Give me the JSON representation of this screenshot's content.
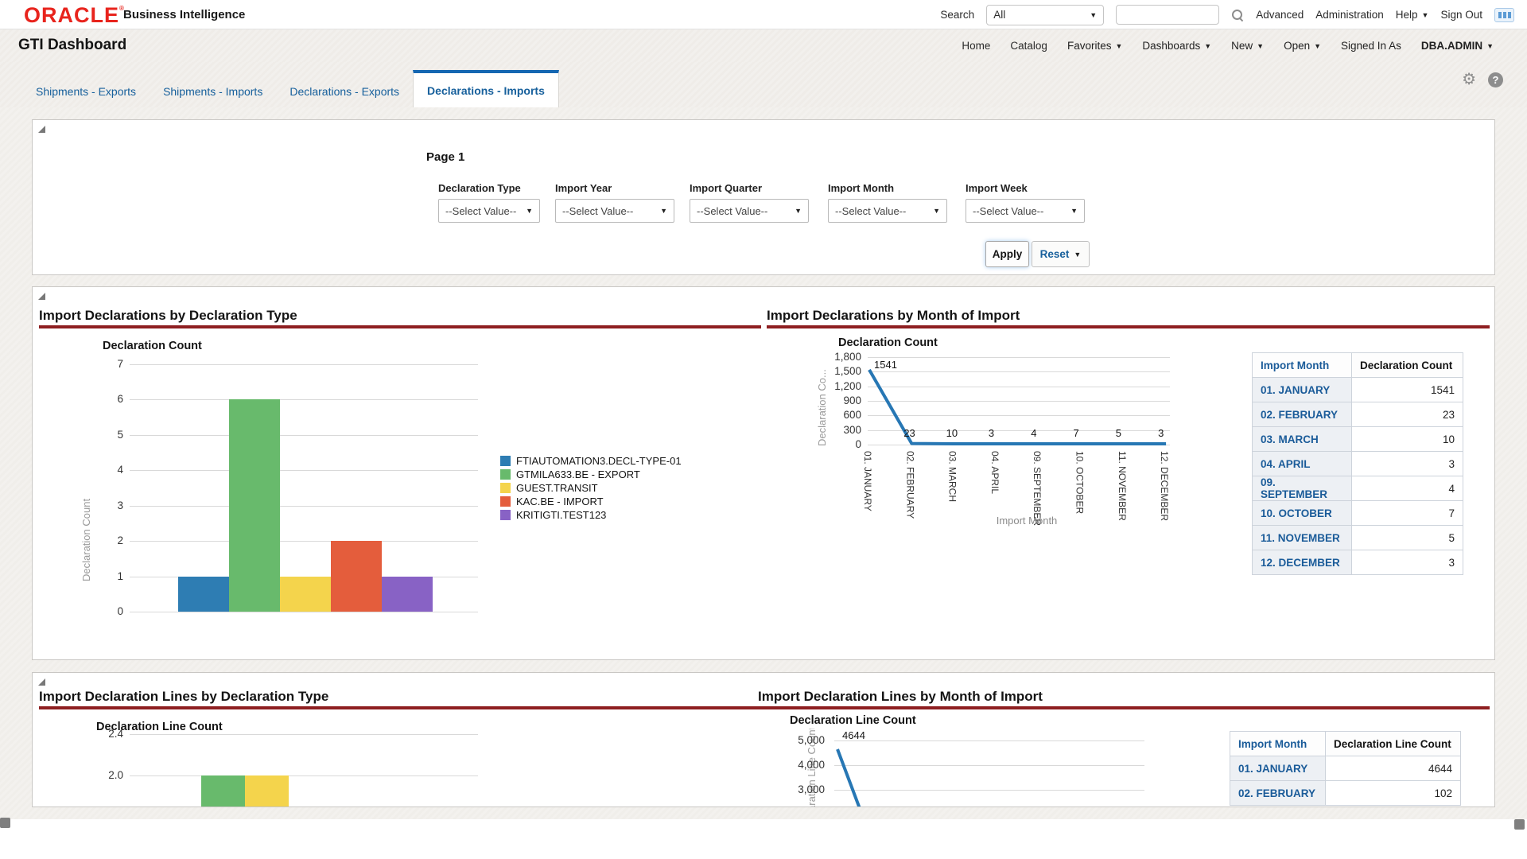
{
  "colors": {
    "oracle_red": "#e8241d",
    "accent_blue": "#1567b2",
    "tab_blue": "#17609c",
    "link_blue": "#1a5b99",
    "rule_red": "#8e1f21",
    "line_blue": "#2777b4"
  },
  "icons": {
    "search": "magnifier",
    "quick_access": "blue-grid",
    "settings": "gear",
    "help": "question-circle",
    "collapse": "triangle",
    "dropdown": "caret-down"
  },
  "header": {
    "brand": "ORACLE",
    "product": "Business Intelligence",
    "search_label": "Search",
    "search_scope": "All",
    "links": [
      "Advanced",
      "Administration"
    ],
    "help_label": "Help",
    "signout_label": "Sign Out"
  },
  "nav": {
    "title": "GTI Dashboard",
    "links": [
      "Home",
      "Catalog"
    ],
    "menus": [
      "Favorites",
      "Dashboards",
      "New",
      "Open"
    ],
    "signed_in_label": "Signed In As",
    "user": "DBA.ADMIN"
  },
  "tabs": {
    "items": [
      {
        "label": "Shipments - Exports",
        "active": false
      },
      {
        "label": "Shipments - Imports",
        "active": false
      },
      {
        "label": "Declarations - Exports",
        "active": false
      },
      {
        "label": "Declarations - Imports",
        "active": true
      }
    ]
  },
  "filters": {
    "page_label": "Page 1",
    "fields": [
      {
        "label": "Declaration Type",
        "value": "--Select Value--"
      },
      {
        "label": "Import Year",
        "value": "--Select Value--"
      },
      {
        "label": "Import Quarter",
        "value": "--Select Value--"
      },
      {
        "label": "Import Month",
        "value": "--Select Value--"
      },
      {
        "label": "Import Week",
        "value": "--Select Value--"
      }
    ],
    "apply_label": "Apply",
    "reset_label": "Reset"
  },
  "chart_data": [
    {
      "id": "import-declarations-by-declaration-type",
      "type": "bar",
      "section_title": "Import Declarations by Declaration Type",
      "title": "Declaration Count",
      "ylabel": "Declaration Count",
      "ylim": [
        0,
        7
      ],
      "yticks": [
        "7",
        "6",
        "5",
        "4",
        "3",
        "2",
        "1",
        "0"
      ],
      "grid": true,
      "legend_position": "right",
      "categories": [
        "FTIAUTOMATION3.DECL-TYPE-01",
        "GTMILA633.BE - EXPORT",
        "GUEST.TRANSIT",
        "KAC.BE - IMPORT",
        "KRITIGTI.TEST123"
      ],
      "values": [
        1,
        6,
        1,
        2,
        1
      ],
      "colors": [
        "#2e7db3",
        "#68ba6c",
        "#f4d44c",
        "#e45d3c",
        "#8862c5"
      ]
    },
    {
      "id": "import-declarations-by-month-of-import",
      "type": "line",
      "section_title": "Import Declarations by Month of Import",
      "title": "Declaration Count",
      "ylabel": "Declaration Co...",
      "xlabel": "Import Month",
      "ylim": [
        0,
        1800
      ],
      "yticks": [
        "1,800",
        "1,500",
        "1,200",
        "900",
        "600",
        "300",
        "0"
      ],
      "grid": true,
      "categories": [
        "01. JANUARY",
        "02. FEBRUARY",
        "03. MARCH",
        "04. APRIL",
        "09. SEPTEMBER",
        "10. OCTOBER",
        "11. NOVEMBER",
        "12. DECEMBER"
      ],
      "values": [
        1541,
        23,
        10,
        3,
        4,
        7,
        5,
        3
      ],
      "data_labels": [
        "1541",
        "23",
        "10",
        "3",
        "4",
        "7",
        "5",
        "3"
      ],
      "line_color": "#2777b4"
    },
    {
      "id": "import-declaration-lines-by-declaration-type",
      "type": "bar",
      "section_title": "Import Declaration Lines by Declaration Type",
      "title": "Declaration Line Count",
      "clipped": true,
      "visible_yticks": [
        "2.4",
        "2.0"
      ],
      "visible_categories": [
        "GTMILA633.BE - EXPORT",
        "GUEST.TRANSIT"
      ],
      "visible_values": [
        2.0,
        2.0
      ],
      "visible_colors": [
        "#68ba6c",
        "#f4d44c"
      ]
    },
    {
      "id": "import-declaration-lines-by-month-of-import",
      "type": "line",
      "section_title": "Import Declaration Lines by Month of Import",
      "title": "Declaration Line Count",
      "ylabel": "Declaration Line Count",
      "clipped": true,
      "visible_yticks": [
        "5,000",
        "4,000",
        "3,000"
      ],
      "categories": [
        "01. JANUARY",
        "02. FEBRUARY"
      ],
      "values": [
        4644,
        102
      ],
      "data_labels": [
        "4644"
      ],
      "line_color": "#2777b4"
    }
  ],
  "tables": [
    {
      "headers": [
        "Import Month",
        "Declaration Count"
      ],
      "rows": [
        [
          "01. JANUARY",
          "1541"
        ],
        [
          "02. FEBRUARY",
          "23"
        ],
        [
          "03. MARCH",
          "10"
        ],
        [
          "04. APRIL",
          "3"
        ],
        [
          "09. SEPTEMBER",
          "4"
        ],
        [
          "10. OCTOBER",
          "7"
        ],
        [
          "11. NOVEMBER",
          "5"
        ],
        [
          "12. DECEMBER",
          "3"
        ]
      ]
    },
    {
      "headers": [
        "Import Month",
        "Declaration Line Count"
      ],
      "rows": [
        [
          "01. JANUARY",
          "4644"
        ],
        [
          "02. FEBRUARY",
          "102"
        ]
      ]
    }
  ]
}
